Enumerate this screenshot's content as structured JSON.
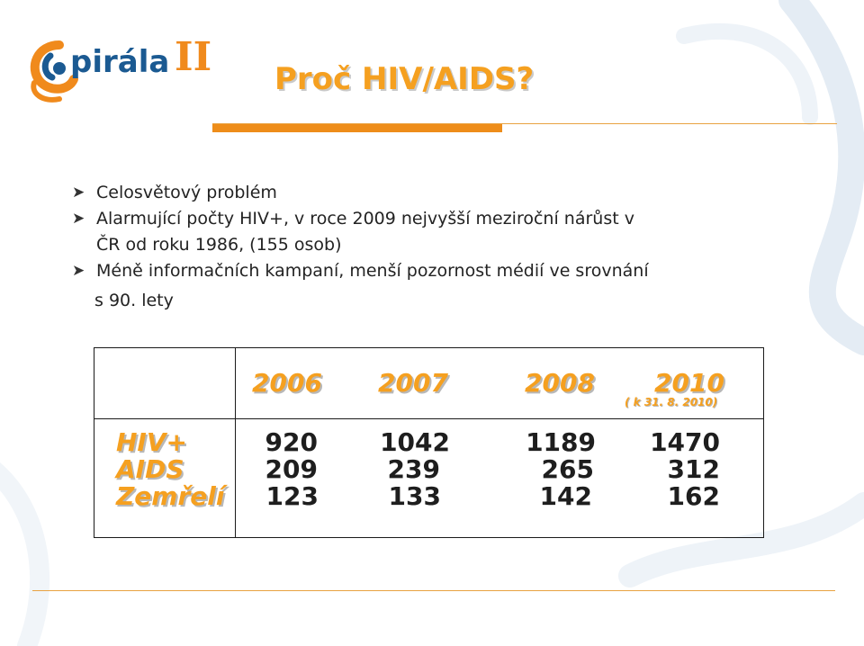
{
  "header": {
    "logo_text": "Spirála II",
    "title": "Proč HIV/AIDS?"
  },
  "bullets": [
    {
      "text": "Celosvětový problém"
    },
    {
      "line1": "Alarmující počty HIV+, v roce 2009 nejvyšší meziroční nárůst v",
      "line2": "ČR od roku 1986, (155 osob)"
    },
    {
      "line1": "Méně informačních kampaní, menší pozornost médií ve srovnání",
      "line2": "s 90. lety"
    }
  ],
  "table": {
    "years": [
      "2006",
      "2007",
      "2008",
      "2010"
    ],
    "year_note": "( k 31. 8. 2010)",
    "rows": [
      {
        "label": "HIV+",
        "values": [
          "920",
          "1042",
          "1189",
          "1470"
        ]
      },
      {
        "label": "AIDS",
        "values": [
          "209",
          "239",
          "265",
          "312"
        ]
      },
      {
        "label": "Zemřelí",
        "values": [
          "123",
          "133",
          "142",
          "162"
        ]
      }
    ]
  },
  "colors": {
    "accent_orange": "#f5a020",
    "logo_blue": "#1b5a92",
    "rule_orange": "#ee8d1a"
  }
}
